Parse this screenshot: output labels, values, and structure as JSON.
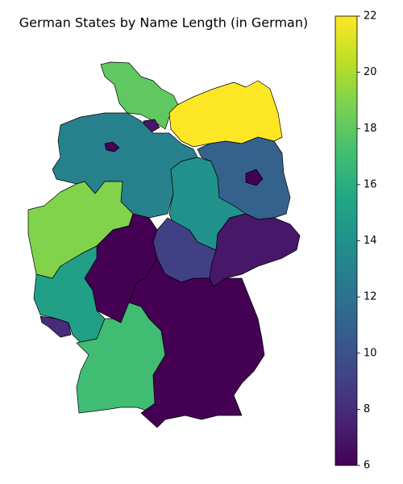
{
  "chart_data": {
    "type": "choropleth",
    "title": "German States by Name Length (in German)",
    "values": [
      18,
      7,
      22,
      13,
      6,
      11,
      6,
      14,
      19,
      6,
      9,
      7,
      15,
      8,
      17,
      6
    ],
    "colormap": "viridis",
    "clim": [
      6,
      22
    ],
    "cticks": [
      6,
      8,
      10,
      12,
      14,
      16,
      18,
      20,
      22
    ]
  }
}
